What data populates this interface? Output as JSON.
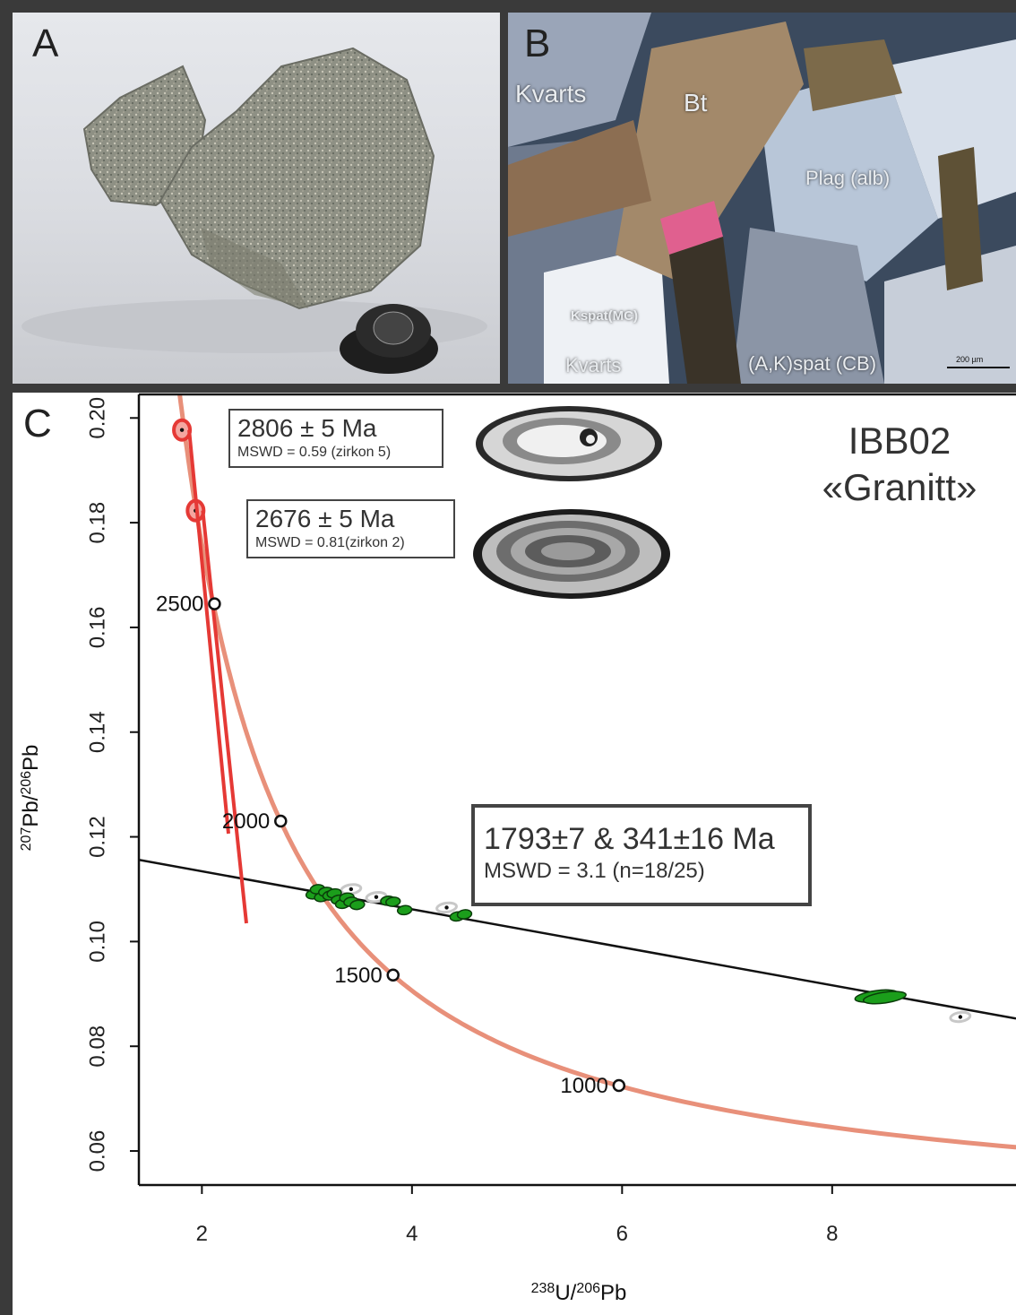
{
  "panels": {
    "a": {
      "letter": "A"
    },
    "b": {
      "letter": "B",
      "labels": {
        "kvarts_top": "Kvarts",
        "bt": "Bt",
        "plag": "Plag (alb)",
        "kspat_mc": "Kspat(MC)",
        "kvarts_bottom": "Kvarts",
        "akspat": "(A,K)spat (CB)",
        "scale": "200 µm"
      }
    },
    "c": {
      "letter": "C"
    }
  },
  "sample": {
    "id": "IBB02",
    "name": "«Granitt»"
  },
  "boxes": {
    "zircon5": {
      "age": "2806 ± 5 Ma",
      "mswd": "MSWD = 0.59 (zirkon 5)"
    },
    "zircon2": {
      "age": "2676 ± 5 Ma",
      "mswd": "MSWD = 0.81(zirkon 2)"
    },
    "discordia": {
      "age": "1793±7 & 341±16 Ma",
      "mswd": "MSWD = 3.1 (n=18/25)"
    }
  },
  "colors": {
    "concordia": "#e8907a",
    "discordia_line": "#111111",
    "highlight": "#e53935",
    "accepted": "#1b9e1b",
    "rejected": "#c8c8c8"
  },
  "chart_data": {
    "type": "scatter",
    "xlabel": {
      "sup1": "238",
      "t1": "U/",
      "sup2": "206",
      "t2": "Pb"
    },
    "ylabel": {
      "sup1": "207",
      "t1": "Pb/",
      "sup2": "206",
      "t2": "Pb"
    },
    "xlim": [
      1.4,
      9.75
    ],
    "ylim": [
      0.0535,
      0.2045
    ],
    "xticks": [
      2,
      4,
      6,
      8
    ],
    "yticks": [
      0.06,
      0.08,
      0.1,
      0.12,
      0.14,
      0.16,
      0.18,
      0.2
    ],
    "ytick_labels": [
      "0.06",
      "0.08",
      "0.10",
      "0.12",
      "0.14",
      "0.16",
      "0.18",
      "0.20"
    ],
    "concordia_age_marks": [
      {
        "age": "2500",
        "x": 2.12,
        "y": 0.1645
      },
      {
        "age": "2000",
        "x": 2.75,
        "y": 0.123
      },
      {
        "age": "1500",
        "x": 3.82,
        "y": 0.0936
      },
      {
        "age": "1000",
        "x": 5.97,
        "y": 0.0725
      }
    ],
    "discordia": {
      "x": [
        1.4,
        9.75
      ],
      "y": [
        0.1156,
        0.0853
      ]
    },
    "highlighted_points": [
      {
        "x": 1.81,
        "y": 0.1977
      },
      {
        "x": 1.94,
        "y": 0.1823
      }
    ],
    "accepted_points": [
      {
        "x": 3.06,
        "y": 0.109
      },
      {
        "x": 3.1,
        "y": 0.11
      },
      {
        "x": 3.14,
        "y": 0.1085
      },
      {
        "x": 3.18,
        "y": 0.1095
      },
      {
        "x": 3.22,
        "y": 0.1088
      },
      {
        "x": 3.26,
        "y": 0.1092
      },
      {
        "x": 3.3,
        "y": 0.108
      },
      {
        "x": 3.34,
        "y": 0.1072
      },
      {
        "x": 3.38,
        "y": 0.1084
      },
      {
        "x": 3.42,
        "y": 0.1076
      },
      {
        "x": 3.48,
        "y": 0.107
      },
      {
        "x": 3.77,
        "y": 0.1078
      },
      {
        "x": 3.82,
        "y": 0.1076
      },
      {
        "x": 3.93,
        "y": 0.106
      },
      {
        "x": 4.43,
        "y": 0.1048
      },
      {
        "x": 4.5,
        "y": 0.1052
      },
      {
        "x": 8.42,
        "y": 0.0896
      },
      {
        "x": 8.5,
        "y": 0.0893
      }
    ],
    "rejected_points": [
      {
        "x": 3.42,
        "y": 0.11
      },
      {
        "x": 3.66,
        "y": 0.1085
      },
      {
        "x": 4.33,
        "y": 0.1065
      },
      {
        "x": 9.22,
        "y": 0.0856
      }
    ]
  }
}
